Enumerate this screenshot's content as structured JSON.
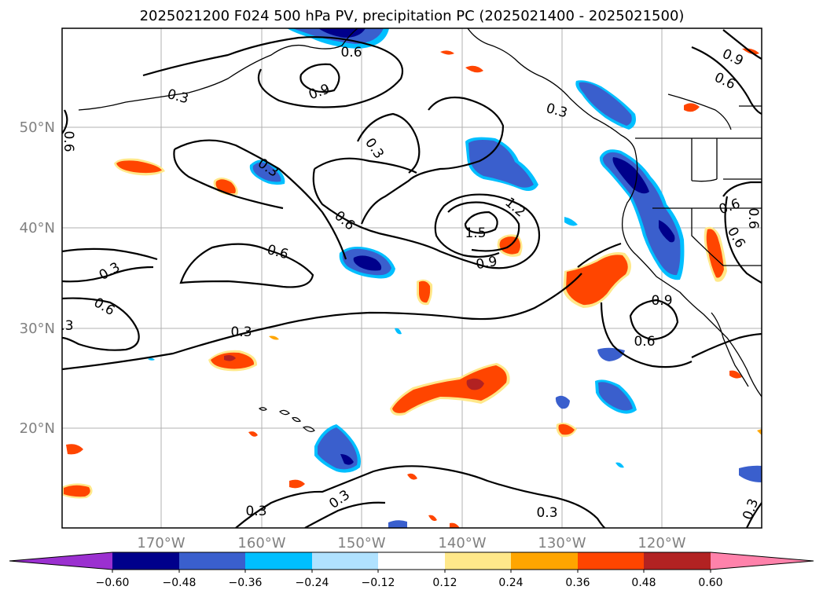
{
  "title": "2025021200 F024 500 hPa PV, precipitation PC (2025021400 - 2025021500)",
  "map": {
    "lat_labels": [
      "50°N",
      "40°N",
      "30°N",
      "20°N"
    ],
    "lon_labels": [
      "170°W",
      "160°W",
      "150°W",
      "140°W",
      "130°W",
      "120°W"
    ],
    "gridlines": true
  },
  "contours": {
    "color": "#000000",
    "labels": [
      "0.6",
      "0.3",
      "0.9",
      "0.6",
      "0.3",
      "0.3",
      "0.9",
      "0.6",
      "0.6",
      "0.3",
      "1.2",
      "1.5",
      "0.6",
      "0.9",
      "0.6",
      "0.3",
      "0.6",
      "0.3",
      "0.6",
      "0.9",
      "0.6",
      "0.3",
      "0.3",
      "0.3",
      "0.3",
      "0.3",
      "0.6"
    ]
  },
  "colorbar": {
    "ticks": [
      "−0.60",
      "−0.48",
      "−0.36",
      "−0.24",
      "−0.12",
      "0.12",
      "0.24",
      "0.36",
      "0.48",
      "0.60"
    ],
    "colors": [
      "#9b30d0",
      "#00008b",
      "#3a5fcd",
      "#00bfff",
      "#b0e2ff",
      "#ffffff",
      "#ffe88a",
      "#ffa500",
      "#ff4500",
      "#b22222",
      "#ff82ab"
    ]
  },
  "palette": {
    "deep_blue": "#00008b",
    "mid_blue": "#3a5fcd",
    "cyan": "#00bfff",
    "light_blue": "#b0e2ff",
    "yellow": "#ffe88a",
    "orange": "#ffa500",
    "red_orange": "#ff4500",
    "dark_red": "#b22222"
  }
}
